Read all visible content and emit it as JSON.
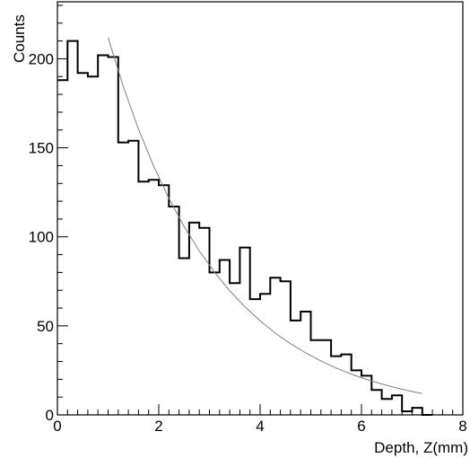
{
  "chart_data": {
    "type": "histogram",
    "title": "",
    "xlabel": "Depth, Z(mm)",
    "ylabel": "Counts",
    "xlim": [
      0,
      8
    ],
    "ylim": [
      0,
      232
    ],
    "grid": false,
    "x_ticks": [
      0,
      2,
      4,
      6,
      8
    ],
    "x_tick_labels": [
      "0",
      "2",
      "4",
      "6",
      "8"
    ],
    "y_ticks": [
      0,
      50,
      100,
      150,
      200
    ],
    "y_tick_labels": [
      "0",
      "50",
      "100",
      "150",
      "200"
    ],
    "bin_width": 0.2,
    "bins_start": [
      0.0,
      0.2,
      0.4,
      0.6,
      0.8,
      1.0,
      1.2,
      1.4,
      1.6,
      1.8,
      2.0,
      2.2,
      2.4,
      2.6,
      2.8,
      3.0,
      3.2,
      3.4,
      3.6,
      3.8,
      4.0,
      4.2,
      4.4,
      4.6,
      4.8,
      5.0,
      5.2,
      5.4,
      5.6,
      5.8,
      6.0,
      6.2,
      6.4,
      6.6,
      6.8,
      7.0,
      7.2
    ],
    "counts": [
      188,
      210,
      192,
      190,
      202,
      201,
      153,
      154,
      131,
      132,
      129,
      117,
      88,
      108,
      105,
      80,
      87,
      74,
      94,
      65,
      68,
      77,
      75,
      53,
      58,
      42,
      42,
      33,
      34,
      25,
      22,
      14,
      9,
      11,
      2,
      4,
      0
    ],
    "series": [
      {
        "name": "",
        "type": "fit-curve",
        "x": [
          1.0,
          1.3,
          1.6,
          1.9,
          2.2,
          2.5,
          2.8,
          3.1,
          3.4,
          3.7,
          4.0,
          4.3,
          4.6,
          4.9,
          5.2,
          5.5,
          5.8,
          6.1,
          6.4,
          6.7,
          7.0,
          7.2
        ],
        "values": [
          212.0,
          184.5,
          160.5,
          139.7,
          121.6,
          105.8,
          92.1,
          80.1,
          69.7,
          60.7,
          52.8,
          45.9,
          40.0,
          34.8,
          30.3,
          26.3,
          22.9,
          19.9,
          17.4,
          15.1,
          13.1,
          12.0
        ]
      }
    ]
  }
}
